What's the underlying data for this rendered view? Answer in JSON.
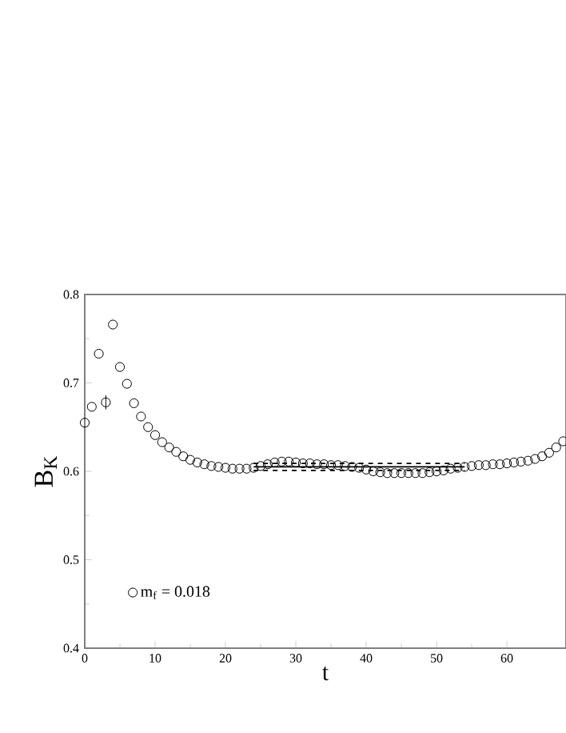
{
  "chart_data": {
    "type": "scatter",
    "xlabel": "t",
    "ylabel": "B$_{K}$",
    "xlim": [
      0,
      68.4
    ],
    "ylim": [
      0.4,
      0.8
    ],
    "xticks": [
      0,
      10,
      20,
      30,
      40,
      50,
      60
    ],
    "yticks": [
      0.4,
      0.5,
      0.6,
      0.7,
      0.8
    ],
    "grid": false,
    "legend": "bottom left",
    "series": [
      {
        "name": "m$_{f}$ = 0.018",
        "marker": "circle",
        "color": "#000000",
        "x": [
          0,
          1,
          2,
          3,
          4,
          5,
          6,
          7,
          8,
          9,
          10,
          11,
          12,
          13,
          14,
          15,
          16,
          17,
          18,
          19,
          20,
          21,
          22,
          23,
          24,
          25,
          26,
          27,
          28,
          29,
          30,
          31,
          32,
          33,
          34,
          35,
          36,
          37,
          38,
          39,
          40,
          41,
          42,
          43,
          44,
          45,
          46,
          47,
          48,
          49,
          50,
          51,
          52,
          53,
          54,
          55,
          56,
          57,
          58,
          59,
          60,
          61,
          62,
          63,
          64,
          65,
          66,
          67,
          68
        ],
        "values": [
          0.655,
          0.673,
          0.733,
          0.678,
          0.766,
          0.718,
          0.699,
          0.677,
          0.662,
          0.65,
          0.641,
          0.633,
          0.627,
          0.622,
          0.617,
          0.613,
          0.61,
          0.608,
          0.606,
          0.605,
          0.604,
          0.603,
          0.603,
          0.603,
          0.604,
          0.606,
          0.608,
          0.61,
          0.611,
          0.611,
          0.61,
          0.609,
          0.609,
          0.608,
          0.608,
          0.607,
          0.607,
          0.606,
          0.605,
          0.604,
          0.602,
          0.6,
          0.599,
          0.598,
          0.598,
          0.598,
          0.598,
          0.598,
          0.598,
          0.599,
          0.6,
          0.601,
          0.603,
          0.604,
          0.605,
          0.606,
          0.607,
          0.607,
          0.608,
          0.608,
          0.609,
          0.61,
          0.611,
          0.612,
          0.614,
          0.617,
          0.621,
          0.627,
          0.634
        ],
        "errors": [
          null,
          null,
          null,
          0.008,
          null,
          null,
          null,
          null,
          null,
          null,
          null,
          null,
          null,
          null,
          null,
          null,
          null,
          null,
          null,
          null,
          null,
          null,
          null,
          null,
          null,
          null,
          null,
          null,
          null,
          null,
          null,
          null,
          null,
          null,
          null,
          null,
          null,
          null,
          null,
          null,
          null,
          null,
          null,
          null,
          null,
          null,
          null,
          null,
          null,
          null,
          null,
          null,
          null,
          null,
          null,
          null,
          null,
          null,
          null,
          null,
          null,
          null,
          null,
          null,
          null,
          null,
          null,
          null,
          null
        ]
      },
      {
        "type": "line",
        "line_style": "solid",
        "color": "#000000",
        "x": [
          24,
          54
        ],
        "values": [
          0.605,
          0.605
        ]
      },
      {
        "type": "line",
        "line_style": "dashed",
        "color": "#000000",
        "x": [
          24,
          54
        ],
        "values": [
          0.609,
          0.609
        ]
      },
      {
        "type": "line",
        "line_style": "dashed",
        "color": "#000000",
        "x": [
          24,
          54
        ],
        "values": [
          0.601,
          0.601
        ]
      }
    ]
  }
}
